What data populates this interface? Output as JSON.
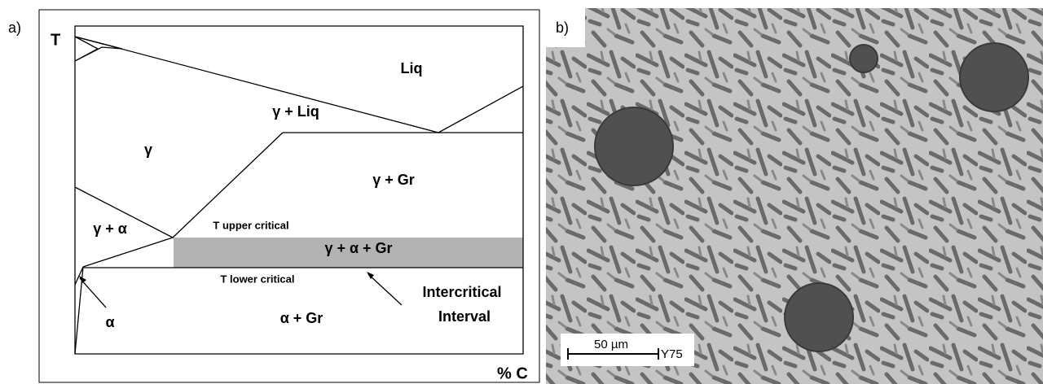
{
  "panel_a": {
    "label": "a)",
    "axis_y": "T",
    "axis_x": "% C",
    "regions": [
      "Liq",
      "γ + Liq",
      "γ",
      "γ + Gr",
      "γ + α",
      "γ + α + Gr",
      "α",
      "α + Gr"
    ],
    "lines": [
      "T upper critical",
      "T lower critical"
    ],
    "annotation": [
      "Intercritical",
      "Interval"
    ]
  },
  "panel_b": {
    "label": "b)",
    "scale_bar": "50 µm",
    "sample": "Y75"
  }
}
